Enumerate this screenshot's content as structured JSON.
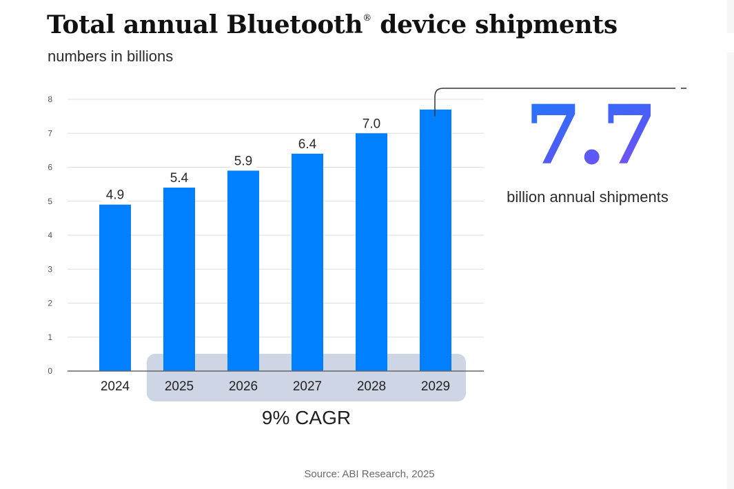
{
  "chart_data": {
    "type": "bar",
    "title": "Total annual Bluetooth® device shipments",
    "title_main": "Total annual Bluetooth",
    "title_mark": "®",
    "title_rest": " device shipments",
    "subtitle": "numbers in billions",
    "xlabel": "",
    "ylabel": "",
    "categories": [
      "2024",
      "2025",
      "2026",
      "2027",
      "2028",
      "2029"
    ],
    "values": [
      4.9,
      5.4,
      5.9,
      6.4,
      7.0,
      7.7
    ],
    "data_labels": [
      "4.9",
      "5.4",
      "5.9",
      "6.4",
      "7.0",
      ""
    ],
    "ylim": [
      0,
      8
    ],
    "yticks": [
      0,
      1,
      2,
      3,
      4,
      5,
      6,
      7,
      8
    ],
    "grid": true,
    "legend": "none",
    "bar_color": "#0080FF",
    "highlight": {
      "label": "9% CAGR",
      "from_category": "2025",
      "to_category": "2029",
      "color": "#CED5E5"
    },
    "callout": {
      "category": "2029",
      "value": "7.7",
      "caption": "billion annual shipments",
      "gradient": [
        "#1A7CFF",
        "#8B4FF2"
      ]
    },
    "source": "Source: ABI Research, 2025"
  }
}
